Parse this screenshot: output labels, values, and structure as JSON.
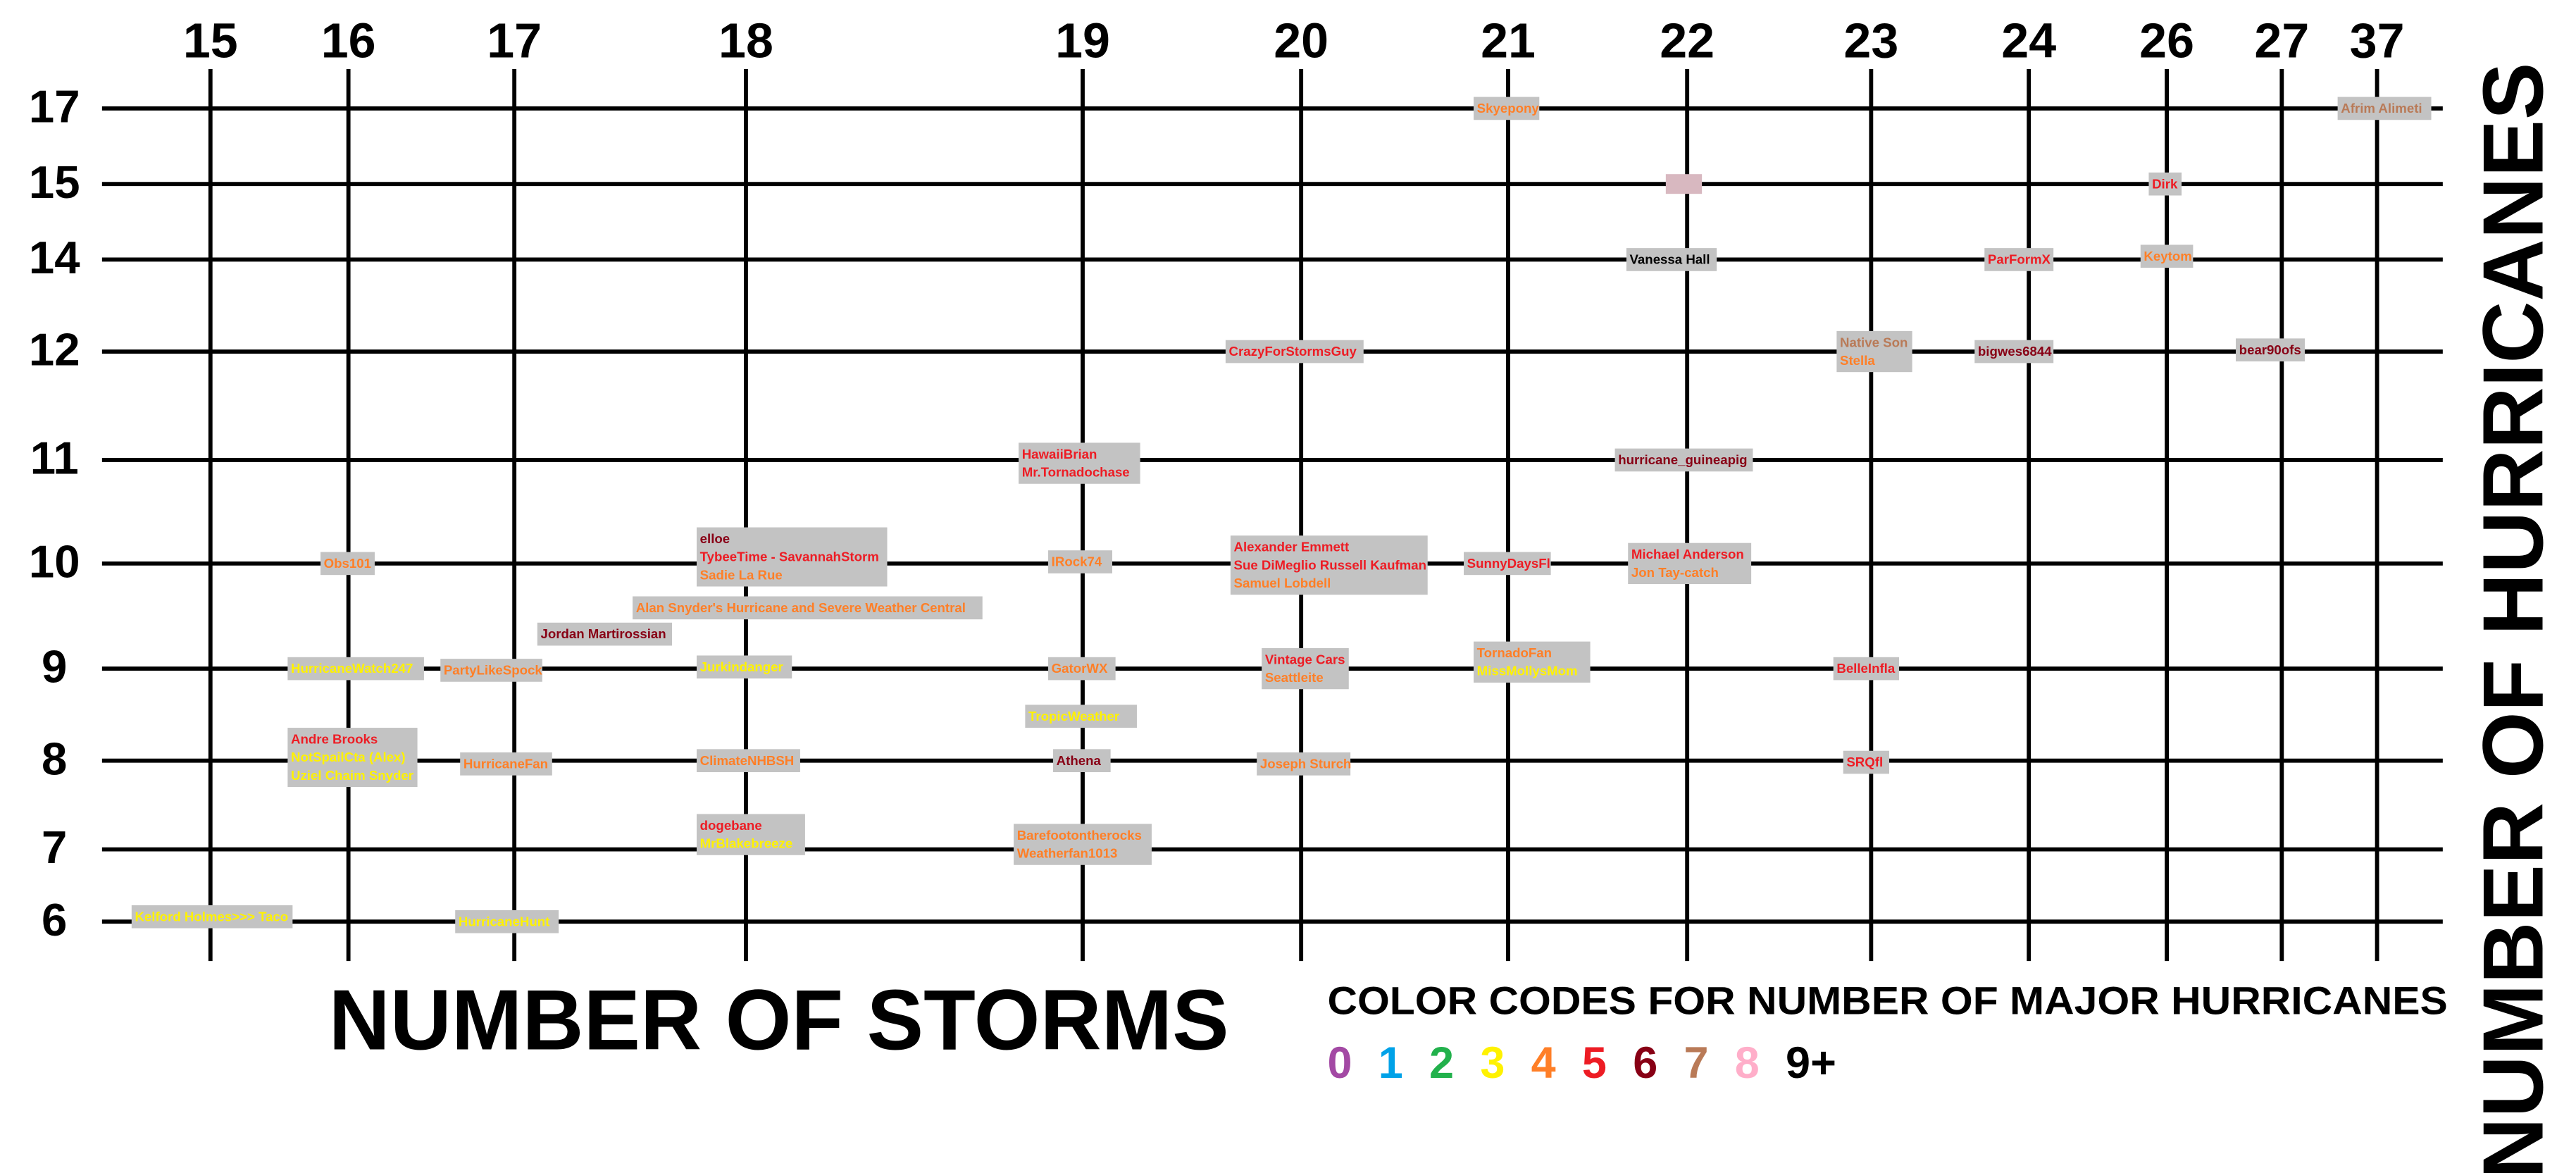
{
  "x_axis": {
    "title": "NUMBER OF STORMS",
    "values": [
      15,
      16,
      17,
      18,
      19,
      20,
      21,
      22,
      23,
      24,
      26,
      27,
      37
    ]
  },
  "y_axis": {
    "title": "NUMBER OF HURRICANES",
    "values": [
      17,
      15,
      14,
      12,
      11,
      10,
      9,
      8,
      7,
      6
    ]
  },
  "legend": {
    "title": "COLOR CODES FOR NUMBER OF MAJOR HURRICANES",
    "items": [
      {
        "label": "0",
        "color": "#a349a4"
      },
      {
        "label": "1",
        "color": "#00a2e8"
      },
      {
        "label": "2",
        "color": "#22b14c"
      },
      {
        "label": "3",
        "color": "#fff200"
      },
      {
        "label": "4",
        "color": "#ff7f27"
      },
      {
        "label": "5",
        "color": "#ed1c24"
      },
      {
        "label": "6",
        "color": "#880015"
      },
      {
        "label": "7",
        "color": "#b97a57"
      },
      {
        "label": "8",
        "color": "#ffaec9"
      },
      {
        "label": "9+",
        "color": "#000000"
      }
    ]
  },
  "entries": [
    {
      "storms": 21,
      "hurricanes": 17,
      "lines": [
        {
          "text": "Skyepony",
          "color": "#ff7f27"
        }
      ]
    },
    {
      "storms": 37,
      "hurricanes": 17,
      "lines": [
        {
          "text": "Afrim Alimeti",
          "color": "#b97a57"
        }
      ]
    },
    {
      "storms": 26,
      "hurricanes": 15,
      "lines": [
        {
          "text": "Dirk",
          "color": "#ed1c24"
        }
      ]
    },
    {
      "storms": 22,
      "hurricanes": 14,
      "lines": [
        {
          "text": "Vanessa Hall",
          "color": "#000000"
        }
      ]
    },
    {
      "storms": 24,
      "hurricanes": 14,
      "lines": [
        {
          "text": "ParFormX",
          "color": "#ed1c24"
        }
      ]
    },
    {
      "storms": 26,
      "hurricanes": 14,
      "lines": [
        {
          "text": "Keytom",
          "color": "#ff7f27"
        }
      ]
    },
    {
      "storms": 20,
      "hurricanes": 12,
      "lines": [
        {
          "text": "CrazyForStormsGuy",
          "color": "#ed1c24"
        }
      ]
    },
    {
      "storms": 23,
      "hurricanes": 12,
      "lines": [
        {
          "text": "Native Son",
          "color": "#b97a57"
        },
        {
          "text": "Stella",
          "color": "#ff7f27"
        }
      ]
    },
    {
      "storms": 24,
      "hurricanes": 12,
      "lines": [
        {
          "text": "bigwes6844",
          "color": "#880015"
        }
      ]
    },
    {
      "storms": 27,
      "hurricanes": 12,
      "lines": [
        {
          "text": "bear90ofs",
          "color": "#880015"
        }
      ]
    },
    {
      "storms": 19,
      "hurricanes": 11,
      "lines": [
        {
          "text": "HawaiiBrian",
          "color": "#ed1c24"
        },
        {
          "text": "Mr.Tornadochase",
          "color": "#ed1c24"
        }
      ]
    },
    {
      "storms": 22,
      "hurricanes": 11,
      "lines": [
        {
          "text": "hurricane_guineapig",
          "color": "#880015"
        }
      ]
    },
    {
      "storms": 16,
      "hurricanes": 10,
      "lines": [
        {
          "text": "Obs101",
          "color": "#ff7f27"
        }
      ]
    },
    {
      "storms": 18,
      "hurricanes": 10,
      "lines": [
        {
          "text": "elloe",
          "color": "#880015"
        },
        {
          "text": "TybeeTime - SavannahStorm",
          "color": "#ed1c24"
        },
        {
          "text": "Sadie La Rue",
          "color": "#ff7f27"
        }
      ]
    },
    {
      "storms": 19,
      "hurricanes": 10,
      "lines": [
        {
          "text": "IRock74",
          "color": "#ff7f27"
        }
      ]
    },
    {
      "storms": 20,
      "hurricanes": 10,
      "lines": [
        {
          "text": "Alexander Emmett",
          "color": "#ed1c24"
        },
        {
          "text": "Sue DiMeglio Russell Kaufman",
          "color": "#ed1c24"
        },
        {
          "text": "Samuel Lobdell",
          "color": "#ff7f27"
        }
      ]
    },
    {
      "storms": 21,
      "hurricanes": 10,
      "lines": [
        {
          "text": "SunnyDaysFl",
          "color": "#ed1c24"
        }
      ]
    },
    {
      "storms": 22,
      "hurricanes": 10,
      "lines": [
        {
          "text": "Michael Anderson",
          "color": "#ed1c24"
        },
        {
          "text": "Jon Tay-catch",
          "color": "#ff7f27"
        }
      ]
    },
    {
      "storms": 18,
      "hurricanes": 10,
      "lines": [
        {
          "text": "Alan Snyder's Hurricane and Severe Weather Central",
          "color": "#ff7f27"
        }
      ]
    },
    {
      "storms": 17,
      "hurricanes": 9,
      "lines": [
        {
          "text": "Jordan Martirossian",
          "color": "#880015"
        }
      ]
    },
    {
      "storms": 16,
      "hurricanes": 9,
      "lines": [
        {
          "text": "HurricaneWatch247",
          "color": "#fff200"
        }
      ]
    },
    {
      "storms": 17,
      "hurricanes": 9,
      "lines": [
        {
          "text": "PartyLikeSpock",
          "color": "#ff7f27"
        }
      ]
    },
    {
      "storms": 18,
      "hurricanes": 9,
      "lines": [
        {
          "text": "Jurkindanger",
          "color": "#fff200"
        }
      ]
    },
    {
      "storms": 19,
      "hurricanes": 9,
      "lines": [
        {
          "text": "GatorWX",
          "color": "#ff7f27"
        }
      ]
    },
    {
      "storms": 20,
      "hurricanes": 9,
      "lines": [
        {
          "text": "Vintage Cars",
          "color": "#ed1c24"
        },
        {
          "text": "Seattleite",
          "color": "#ff7f27"
        }
      ]
    },
    {
      "storms": 21,
      "hurricanes": 9,
      "lines": [
        {
          "text": "TornadoFan",
          "color": "#ff7f27"
        },
        {
          "text": "MissMollysMom",
          "color": "#fff200"
        }
      ]
    },
    {
      "storms": 23,
      "hurricanes": 9,
      "lines": [
        {
          "text": "BelleInfla",
          "color": "#ed1c24"
        }
      ]
    },
    {
      "storms": 19,
      "hurricanes": 8,
      "lines": [
        {
          "text": "TropicWeather",
          "color": "#fff200"
        }
      ]
    },
    {
      "storms": 16,
      "hurricanes": 8,
      "lines": [
        {
          "text": "Andre Brooks",
          "color": "#ed1c24"
        },
        {
          "text": "NotSpailCta (Alex)",
          "color": "#fff200"
        },
        {
          "text": "Uziel Chaim Snyder",
          "color": "#fff200"
        }
      ]
    },
    {
      "storms": 17,
      "hurricanes": 8,
      "lines": [
        {
          "text": "HurricaneFan",
          "color": "#ff7f27"
        }
      ]
    },
    {
      "storms": 18,
      "hurricanes": 8,
      "lines": [
        {
          "text": "ClimateNHBSH",
          "color": "#ff7f27"
        }
      ]
    },
    {
      "storms": 19,
      "hurricanes": 8,
      "lines": [
        {
          "text": "Athena",
          "color": "#880015"
        }
      ]
    },
    {
      "storms": 20,
      "hurricanes": 8,
      "lines": [
        {
          "text": "Joseph Sturch",
          "color": "#ff7f27"
        }
      ]
    },
    {
      "storms": 23,
      "hurricanes": 8,
      "lines": [
        {
          "text": "SRQfl",
          "color": "#ed1c24"
        }
      ]
    },
    {
      "storms": 18,
      "hurricanes": 7,
      "lines": [
        {
          "text": "dogebane",
          "color": "#ed1c24"
        },
        {
          "text": "MrBlakebreeze",
          "color": "#fff200"
        }
      ]
    },
    {
      "storms": 19,
      "hurricanes": 7,
      "lines": [
        {
          "text": "Barefootontherocks",
          "color": "#ff7f27"
        },
        {
          "text": "Weatherfan1013",
          "color": "#ff7f27"
        }
      ]
    },
    {
      "storms": 15,
      "hurricanes": 6,
      "lines": [
        {
          "text": "Kelford Holmes>>> Taco",
          "color": "#fff200"
        }
      ]
    },
    {
      "storms": 17,
      "hurricanes": 6,
      "lines": [
        {
          "text": "HurricaneHunt",
          "color": "#fff200"
        }
      ]
    }
  ]
}
